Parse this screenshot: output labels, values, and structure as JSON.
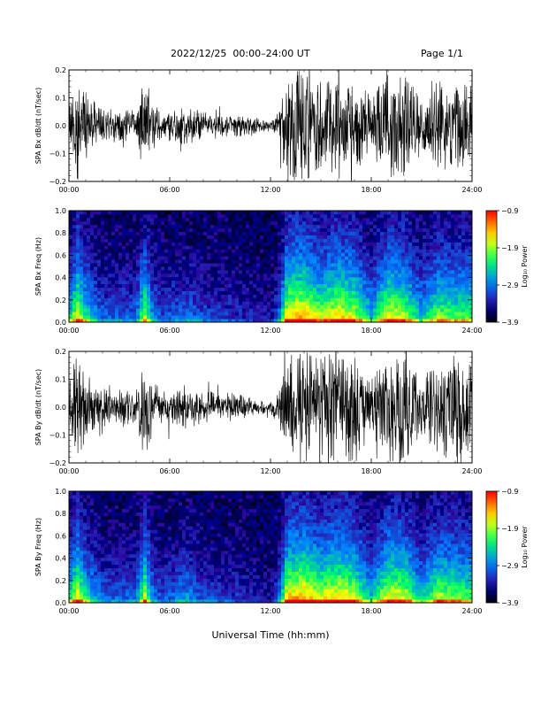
{
  "header": {
    "title": "2022/12/25  00:00–24:00 UT",
    "page_label": "Page 1/1"
  },
  "x_axis_title": "Universal Time (hh:mm)",
  "chart_data": [
    {
      "type": "line",
      "ylabel": "SPA Bx dB/dt (nT/sec)",
      "ylim": [
        -0.2,
        0.2
      ],
      "yticks": [
        -0.2,
        -0.1,
        0.0,
        0.1,
        0.2
      ],
      "ytick_labels": [
        "−0.2",
        "−0.1",
        "0.0",
        "0.1",
        "0.2"
      ],
      "x_range_hours": [
        0,
        24
      ],
      "xticks": [
        "00:00",
        "06:00",
        "12:00",
        "18:00",
        "24:00"
      ],
      "series_color": "#000000",
      "amplitude_envelope": {
        "x": [
          0,
          0.5,
          1,
          2,
          4,
          4.5,
          5,
          5.5,
          7,
          8,
          10,
          11,
          12,
          12.5,
          13,
          14,
          15,
          16,
          17,
          18,
          19,
          20,
          21,
          22,
          23,
          24
        ],
        "y": [
          0.08,
          0.2,
          0.12,
          0.06,
          0.06,
          0.18,
          0.09,
          0.05,
          0.07,
          0.05,
          0.04,
          0.03,
          0.02,
          0.06,
          0.2,
          0.2,
          0.16,
          0.2,
          0.18,
          0.1,
          0.2,
          0.18,
          0.1,
          0.17,
          0.15,
          0.15
        ]
      }
    },
    {
      "type": "heatmap",
      "ylabel": "SPA Bx Freq (Hz)",
      "ylim": [
        0.0,
        1.0
      ],
      "yticks": [
        0.0,
        0.2,
        0.4,
        0.6,
        0.8,
        1.0
      ],
      "ytick_labels": [
        "0.0",
        "0.2",
        "0.4",
        "0.6",
        "0.8",
        "1.0"
      ],
      "x_range_hours": [
        0,
        24
      ],
      "xticks": [
        "00:00",
        "06:00",
        "12:00",
        "18:00",
        "24:00"
      ],
      "colorbar": {
        "label": "Log₁₀ Power",
        "range": [
          -3.9,
          -0.9
        ],
        "ticks": [
          -0.9,
          -1.9,
          -2.9,
          -3.9
        ],
        "tick_labels": [
          "−0.9",
          "−1.9",
          "−2.9",
          "−3.9"
        ]
      },
      "activity_profile": {
        "x": [
          0,
          0.5,
          1,
          2,
          4,
          4.5,
          5,
          5.5,
          7,
          8,
          10,
          11,
          12,
          12.5,
          13,
          14,
          15,
          16,
          17,
          18,
          19,
          20,
          21,
          22,
          23,
          24
        ],
        "y": [
          0.5,
          0.9,
          0.6,
          0.3,
          0.3,
          0.8,
          0.4,
          0.25,
          0.35,
          0.25,
          0.2,
          0.15,
          0.1,
          0.3,
          0.95,
          1.0,
          0.8,
          0.95,
          0.85,
          0.5,
          0.9,
          0.8,
          0.5,
          0.75,
          0.7,
          0.7
        ]
      }
    },
    {
      "type": "line",
      "ylabel": "SPA By dB/dt (nT/sec)",
      "ylim": [
        -0.2,
        0.2
      ],
      "yticks": [
        -0.2,
        -0.1,
        0.0,
        0.1,
        0.2
      ],
      "ytick_labels": [
        "−0.2",
        "−0.1",
        "0.0",
        "0.1",
        "0.2"
      ],
      "x_range_hours": [
        0,
        24
      ],
      "xticks": [
        "00:00",
        "06:00",
        "12:00",
        "18:00",
        "24:00"
      ],
      "series_color": "#000000",
      "amplitude_envelope": {
        "x": [
          0,
          0.5,
          1,
          2,
          4,
          4.5,
          5,
          5.5,
          7,
          8,
          10,
          11,
          12,
          12.5,
          13,
          14,
          15,
          16,
          17,
          18,
          19,
          20,
          21,
          22,
          23,
          24
        ],
        "y": [
          0.1,
          0.2,
          0.12,
          0.07,
          0.06,
          0.2,
          0.1,
          0.06,
          0.08,
          0.06,
          0.05,
          0.03,
          0.02,
          0.07,
          0.2,
          0.2,
          0.18,
          0.2,
          0.2,
          0.1,
          0.2,
          0.2,
          0.1,
          0.18,
          0.18,
          0.16
        ]
      }
    },
    {
      "type": "heatmap",
      "ylabel": "SPA By Freq (Hz)",
      "ylim": [
        0.0,
        1.0
      ],
      "yticks": [
        0.0,
        0.2,
        0.4,
        0.6,
        0.8,
        1.0
      ],
      "ytick_labels": [
        "0.0",
        "0.2",
        "0.4",
        "0.6",
        "0.8",
        "1.0"
      ],
      "x_range_hours": [
        0,
        24
      ],
      "xticks": [
        "00:00",
        "06:00",
        "12:00",
        "18:00",
        "24:00"
      ],
      "colorbar": {
        "label": "Log₁₀ Power",
        "range": [
          -3.9,
          -0.9
        ],
        "ticks": [
          -0.9,
          -1.9,
          -2.9,
          -3.9
        ],
        "tick_labels": [
          "−0.9",
          "−1.9",
          "−2.9",
          "−3.9"
        ]
      },
      "activity_profile": {
        "x": [
          0,
          0.5,
          1,
          2,
          4,
          4.5,
          5,
          5.5,
          7,
          8,
          10,
          11,
          12,
          12.5,
          13,
          14,
          15,
          16,
          17,
          18,
          19,
          20,
          21,
          22,
          23,
          24
        ],
        "y": [
          0.55,
          0.9,
          0.6,
          0.3,
          0.3,
          0.85,
          0.4,
          0.25,
          0.4,
          0.25,
          0.2,
          0.15,
          0.1,
          0.3,
          0.95,
          1.0,
          0.85,
          0.95,
          0.85,
          0.5,
          0.9,
          0.85,
          0.5,
          0.8,
          0.75,
          0.7
        ]
      }
    }
  ]
}
